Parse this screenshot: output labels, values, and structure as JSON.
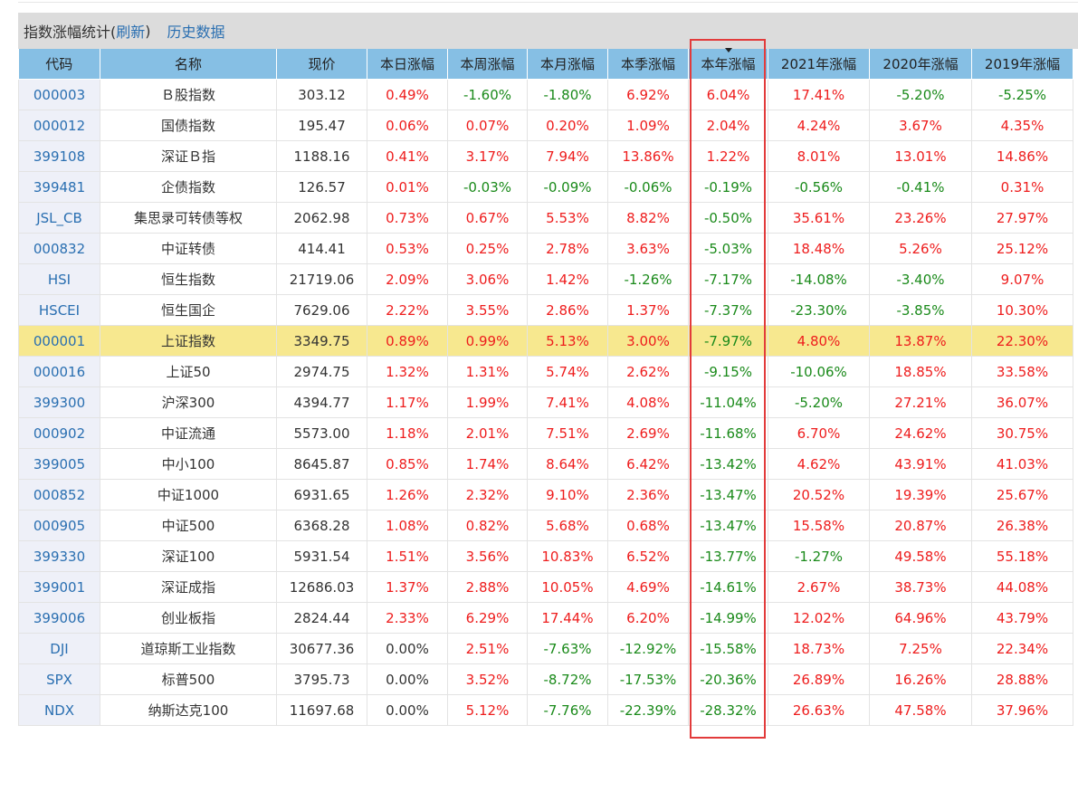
{
  "header": {
    "title": "指数涨幅统计(",
    "refresh_label": "刷新",
    "close_paren": ")",
    "history_label": "历史数据"
  },
  "columns": [
    "代码",
    "名称",
    "现价",
    "本日涨幅",
    "本周涨幅",
    "本月涨幅",
    "本季涨幅",
    "本年涨幅",
    "2021年涨幅",
    "2020年涨幅",
    "2019年涨幅"
  ],
  "sorted_column": "本年涨幅",
  "highlighted_row": "000001",
  "rows": [
    {
      "code": "000003",
      "name": "Ｂ股指数",
      "price": "303.12",
      "day": "0.49%",
      "week": "-1.60%",
      "month": "-1.80%",
      "quarter": "6.92%",
      "year": "6.04%",
      "y2021": "17.41%",
      "y2020": "-5.20%",
      "y2019": "-5.25%"
    },
    {
      "code": "000012",
      "name": "国债指数",
      "price": "195.47",
      "day": "0.06%",
      "week": "0.07%",
      "month": "0.20%",
      "quarter": "1.09%",
      "year": "2.04%",
      "y2021": "4.24%",
      "y2020": "3.67%",
      "y2019": "4.35%"
    },
    {
      "code": "399108",
      "name": "深证Ｂ指",
      "price": "1188.16",
      "day": "0.41%",
      "week": "3.17%",
      "month": "7.94%",
      "quarter": "13.86%",
      "year": "1.22%",
      "y2021": "8.01%",
      "y2020": "13.01%",
      "y2019": "14.86%"
    },
    {
      "code": "399481",
      "name": "企债指数",
      "price": "126.57",
      "day": "0.01%",
      "week": "-0.03%",
      "month": "-0.09%",
      "quarter": "-0.06%",
      "year": "-0.19%",
      "y2021": "-0.56%",
      "y2020": "-0.41%",
      "y2019": "0.31%"
    },
    {
      "code": "JSL_CB",
      "name": "集思录可转债等权",
      "price": "2062.98",
      "day": "0.73%",
      "week": "0.67%",
      "month": "5.53%",
      "quarter": "8.82%",
      "year": "-0.50%",
      "y2021": "35.61%",
      "y2020": "23.26%",
      "y2019": "27.97%"
    },
    {
      "code": "000832",
      "name": "中证转债",
      "price": "414.41",
      "day": "0.53%",
      "week": "0.25%",
      "month": "2.78%",
      "quarter": "3.63%",
      "year": "-5.03%",
      "y2021": "18.48%",
      "y2020": "5.26%",
      "y2019": "25.12%"
    },
    {
      "code": "HSI",
      "name": "恒生指数",
      "price": "21719.06",
      "day": "2.09%",
      "week": "3.06%",
      "month": "1.42%",
      "quarter": "-1.26%",
      "year": "-7.17%",
      "y2021": "-14.08%",
      "y2020": "-3.40%",
      "y2019": "9.07%"
    },
    {
      "code": "HSCEI",
      "name": "恒生国企",
      "price": "7629.06",
      "day": "2.22%",
      "week": "3.55%",
      "month": "2.86%",
      "quarter": "1.37%",
      "year": "-7.37%",
      "y2021": "-23.30%",
      "y2020": "-3.85%",
      "y2019": "10.30%"
    },
    {
      "code": "000001",
      "name": "上证指数",
      "price": "3349.75",
      "day": "0.89%",
      "week": "0.99%",
      "month": "5.13%",
      "quarter": "3.00%",
      "year": "-7.97%",
      "y2021": "4.80%",
      "y2020": "13.87%",
      "y2019": "22.30%"
    },
    {
      "code": "000016",
      "name": "上证50",
      "price": "2974.75",
      "day": "1.32%",
      "week": "1.31%",
      "month": "5.74%",
      "quarter": "2.62%",
      "year": "-9.15%",
      "y2021": "-10.06%",
      "y2020": "18.85%",
      "y2019": "33.58%"
    },
    {
      "code": "399300",
      "name": "沪深300",
      "price": "4394.77",
      "day": "1.17%",
      "week": "1.99%",
      "month": "7.41%",
      "quarter": "4.08%",
      "year": "-11.04%",
      "y2021": "-5.20%",
      "y2020": "27.21%",
      "y2019": "36.07%"
    },
    {
      "code": "000902",
      "name": "中证流通",
      "price": "5573.00",
      "day": "1.18%",
      "week": "2.01%",
      "month": "7.51%",
      "quarter": "2.69%",
      "year": "-11.68%",
      "y2021": "6.70%",
      "y2020": "24.62%",
      "y2019": "30.75%"
    },
    {
      "code": "399005",
      "name": "中小100",
      "price": "8645.87",
      "day": "0.85%",
      "week": "1.74%",
      "month": "8.64%",
      "quarter": "6.42%",
      "year": "-13.42%",
      "y2021": "4.62%",
      "y2020": "43.91%",
      "y2019": "41.03%"
    },
    {
      "code": "000852",
      "name": "中证1000",
      "price": "6931.65",
      "day": "1.26%",
      "week": "2.32%",
      "month": "9.10%",
      "quarter": "2.36%",
      "year": "-13.47%",
      "y2021": "20.52%",
      "y2020": "19.39%",
      "y2019": "25.67%"
    },
    {
      "code": "000905",
      "name": "中证500",
      "price": "6368.28",
      "day": "1.08%",
      "week": "0.82%",
      "month": "5.68%",
      "quarter": "0.68%",
      "year": "-13.47%",
      "y2021": "15.58%",
      "y2020": "20.87%",
      "y2019": "26.38%"
    },
    {
      "code": "399330",
      "name": "深证100",
      "price": "5931.54",
      "day": "1.51%",
      "week": "3.56%",
      "month": "10.83%",
      "quarter": "6.52%",
      "year": "-13.77%",
      "y2021": "-1.27%",
      "y2020": "49.58%",
      "y2019": "55.18%"
    },
    {
      "code": "399001",
      "name": "深证成指",
      "price": "12686.03",
      "day": "1.37%",
      "week": "2.88%",
      "month": "10.05%",
      "quarter": "4.69%",
      "year": "-14.61%",
      "y2021": "2.67%",
      "y2020": "38.73%",
      "y2019": "44.08%"
    },
    {
      "code": "399006",
      "name": "创业板指",
      "price": "2824.44",
      "day": "2.33%",
      "week": "6.29%",
      "month": "17.44%",
      "quarter": "6.20%",
      "year": "-14.99%",
      "y2021": "12.02%",
      "y2020": "64.96%",
      "y2019": "43.79%"
    },
    {
      "code": "DJI",
      "name": "道琼斯工业指数",
      "price": "30677.36",
      "day": "0.00%",
      "week": "2.51%",
      "month": "-7.63%",
      "quarter": "-12.92%",
      "year": "-15.58%",
      "y2021": "18.73%",
      "y2020": "7.25%",
      "y2019": "22.34%"
    },
    {
      "code": "SPX",
      "name": "标普500",
      "price": "3795.73",
      "day": "0.00%",
      "week": "3.52%",
      "month": "-8.72%",
      "quarter": "-17.53%",
      "year": "-20.36%",
      "y2021": "26.89%",
      "y2020": "16.26%",
      "y2019": "28.88%"
    },
    {
      "code": "NDX",
      "name": "纳斯达克100",
      "price": "11697.68",
      "day": "0.00%",
      "week": "5.12%",
      "month": "-7.76%",
      "quarter": "-22.39%",
      "year": "-28.32%",
      "y2021": "26.63%",
      "y2020": "47.58%",
      "y2019": "37.96%"
    }
  ],
  "colors": {
    "up": "#ee1d1d",
    "down": "#1a8a1a",
    "header": "#86bfe4",
    "highlight_row": "#f7e88f",
    "highlight_box": "#e23b3b",
    "link": "#2a6fb1"
  }
}
